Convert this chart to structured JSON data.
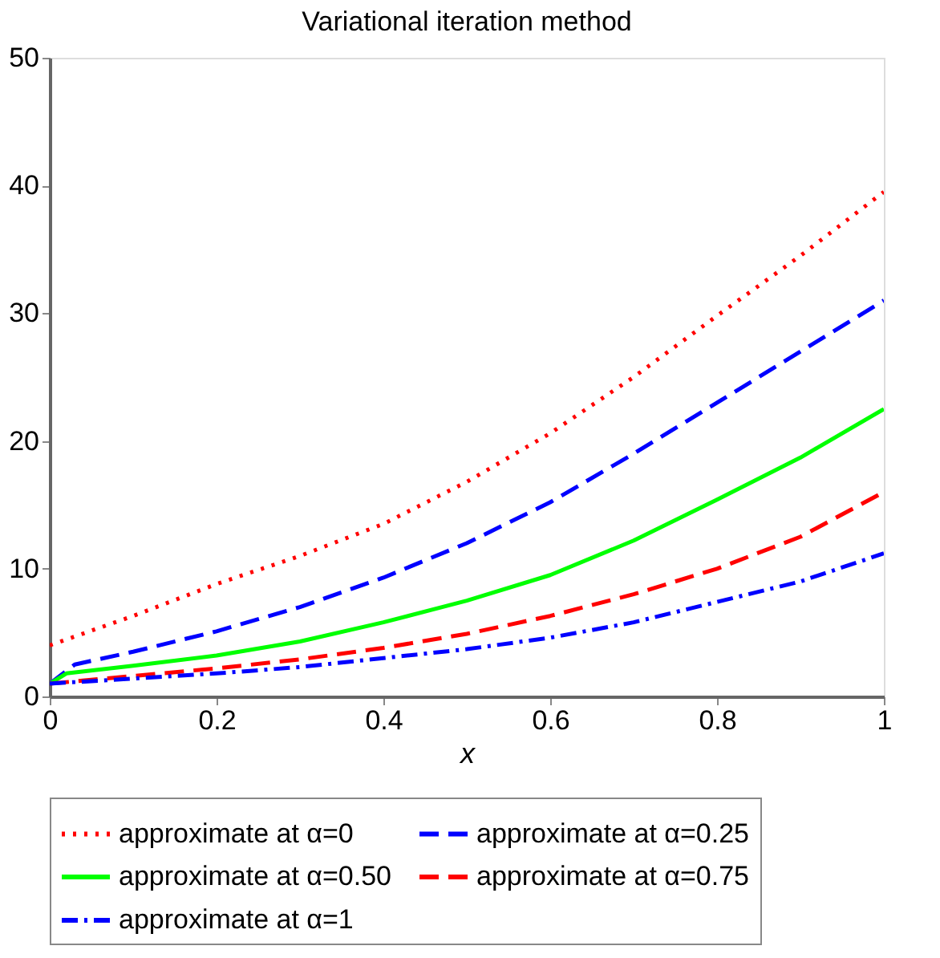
{
  "chart_data": {
    "type": "line",
    "title": "Variational iteration method",
    "xlabel": "x",
    "x": [
      0,
      0.1,
      0.2,
      0.3,
      0.4,
      0.5,
      0.6,
      0.7,
      0.8,
      0.9,
      1
    ],
    "series": [
      {
        "name": "approximate at α=0",
        "color": "#ff0000",
        "line_style": "dotted",
        "values": [
          4,
          6.3,
          8.8,
          11,
          13.5,
          16.8,
          20.6,
          25,
          29.8,
          34.5,
          39.5
        ]
      },
      {
        "name": "approximate at α=0.25",
        "color": "#0000ff",
        "line_style": "dashed",
        "x": [
          0,
          0.03,
          0.1,
          0.2,
          0.3,
          0.4,
          0.5,
          0.6,
          0.7,
          0.8,
          0.9,
          1
        ],
        "values": [
          1,
          2.5,
          3.5,
          5.1,
          7,
          9.3,
          12,
          15.2,
          19,
          23,
          27,
          31
        ]
      },
      {
        "name": "approximate at α=0.50",
        "color": "#00ff00",
        "line_style": "solid",
        "x": [
          0,
          0.02,
          0.1,
          0.2,
          0.3,
          0.4,
          0.5,
          0.6,
          0.7,
          0.8,
          0.9,
          1
        ],
        "values": [
          1,
          1.8,
          2.4,
          3.2,
          4.3,
          5.8,
          7.5,
          9.5,
          12.2,
          15.4,
          18.7,
          22.5
        ]
      },
      {
        "name": "approximate at α=0.75",
        "color": "#ff0000",
        "line_style": "dashed",
        "values": [
          1,
          1.6,
          2.2,
          2.9,
          3.8,
          4.9,
          6.3,
          8,
          10,
          12.5,
          16
        ]
      },
      {
        "name": "approximate at α=1",
        "color": "#0000ff",
        "line_style": "dashdot",
        "values": [
          1,
          1.4,
          1.8,
          2.3,
          3,
          3.7,
          4.6,
          5.8,
          7.4,
          9,
          11.2
        ]
      }
    ],
    "xlim": [
      0,
      1
    ],
    "xticks": [
      0,
      0.2,
      0.4,
      0.6,
      0.8,
      1
    ],
    "ylim": [
      0,
      50
    ],
    "yticks": [
      0,
      10,
      20,
      30,
      40,
      50
    ],
    "grid": false,
    "legend": "bottom"
  }
}
